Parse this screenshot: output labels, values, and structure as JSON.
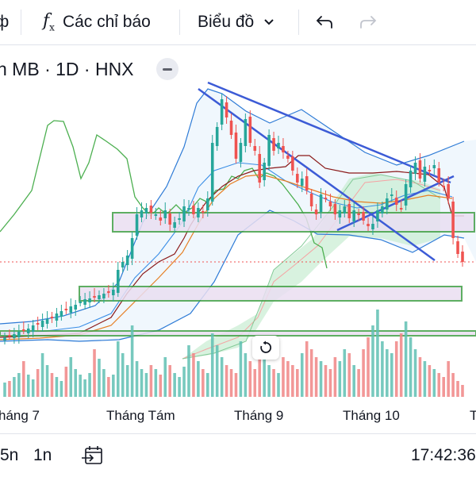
{
  "toolbar": {
    "left_glyph": "ф",
    "indicators_icon": "function-fx-icon",
    "indicators_label": "Các chỉ báo",
    "chart_type_label": "Biểu đồ",
    "chart_type_icon": "chevron-down-icon",
    "undo_icon": "undo-icon",
    "redo_icon": "redo-icon"
  },
  "symbol": {
    "text": "n MB · 1D · HNX",
    "collapse_icon": "minus-pill-icon"
  },
  "chart_data": {
    "type": "candlestick",
    "x_axis_labels": [
      "háng 7",
      "Tháng Tám",
      "Tháng 9",
      "Tháng 10"
    ],
    "x_axis_trailing": "T",
    "colors": {
      "up": "#26a69a",
      "down": "#ef5350",
      "upper_band": "#2e7bd6",
      "channel": "#3c5bd6",
      "zone_fill": "#eadff2",
      "zone_border": "#43a047",
      "cloud_fill": "#c8ecd1",
      "lagging_span": "#4caf50",
      "ma_fast": "#8b1a1a",
      "ma_slow": "#e67e22"
    },
    "overlays": [
      "bollinger-bands",
      "ichimoku-cloud",
      "moving-averages",
      "trend-lines",
      "support-resistance-zones",
      "volume"
    ]
  },
  "bottombar": {
    "interval_1": "5n",
    "interval_2": "1n",
    "goto_icon": "calendar-arrow-icon",
    "clock": "17:42:36"
  },
  "reset_icon": "reset-rotate-icon"
}
